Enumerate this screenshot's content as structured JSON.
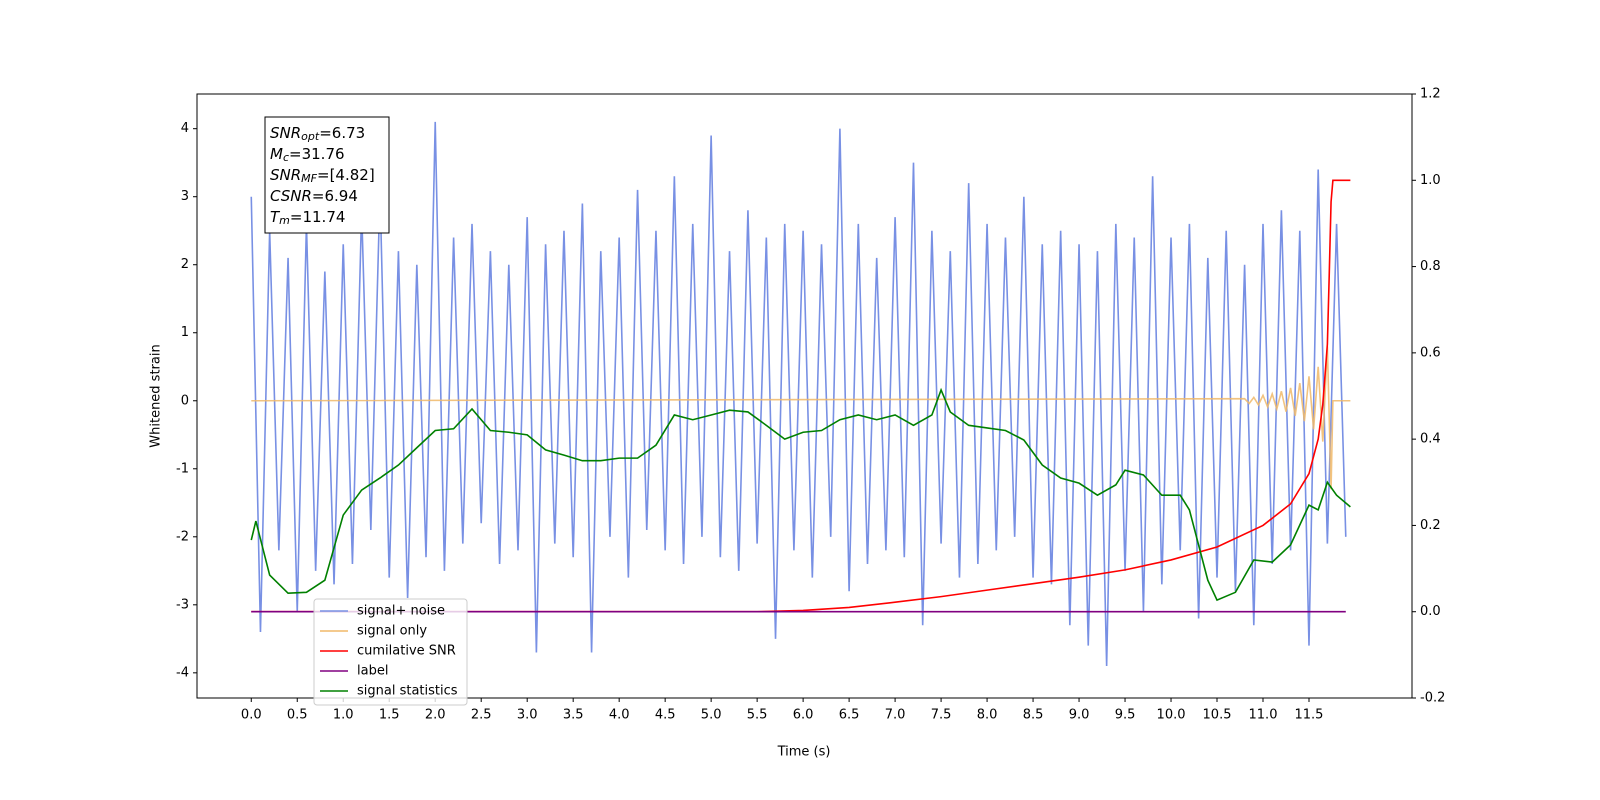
{
  "chart_data": {
    "type": "line",
    "xlabel": "Time (s)",
    "ylabel": "Whitened strain",
    "xlim": [
      -0.59,
      12.62
    ],
    "ylim": [
      -4.37,
      4.51
    ],
    "y2lim": [
      -0.2,
      1.2
    ],
    "xticks": [
      {
        "value": 0,
        "label": "0.0"
      },
      0.5,
      {
        "value": 1,
        "label": "1.0"
      },
      1.5,
      {
        "value": 2,
        "label": "2.0"
      },
      2.5,
      {
        "value": 3,
        "label": "3.0"
      },
      3.5,
      {
        "value": 4,
        "label": "4.0"
      },
      4.5,
      {
        "value": 5,
        "label": "5.0"
      },
      5.5,
      {
        "value": 6,
        "label": "6.0"
      },
      6.5,
      {
        "value": 7,
        "label": "7.0"
      },
      7.5,
      {
        "value": 8,
        "label": "8.0"
      },
      8.5,
      {
        "value": 9,
        "label": "9.0"
      },
      9.5,
      {
        "value": 10,
        "label": "10.0"
      },
      10.5,
      {
        "value": 11,
        "label": "11.0"
      },
      11.5
    ],
    "yticks": [
      -4,
      -3,
      -2,
      -1,
      0,
      1,
      2,
      3,
      4
    ],
    "y2ticks": [
      -0.2,
      {
        "value": 0,
        "label": "0.0"
      },
      0.2,
      0.4,
      0.6,
      0.8,
      {
        "value": 1,
        "label": "1.0"
      },
      1.2
    ],
    "grid": false,
    "legend": "lower left",
    "annotations": [
      {
        "base": "SNR",
        "sub": "opt",
        "text": "=6.73"
      },
      {
        "base": "M",
        "sub": "c",
        "text": "=31.76"
      },
      {
        "base": "SNR",
        "sub": "MF",
        "text": "=[4.82]"
      },
      {
        "base": "CSNR",
        "sub": null,
        "text": "=6.94"
      },
      {
        "base": "T",
        "sub": "m",
        "text": "=11.74"
      }
    ],
    "series": [
      {
        "name": "signal+ noise",
        "color": "#7890e4",
        "x": [
          0,
          0.1,
          0.2,
          0.3,
          0.4,
          0.5,
          0.6,
          0.7,
          0.8,
          0.9,
          1,
          1.1,
          1.2,
          1.3,
          1.4,
          1.5,
          1.6,
          1.7,
          1.8,
          1.9,
          2,
          2.1,
          2.2,
          2.3,
          2.4,
          2.5,
          2.6,
          2.7,
          2.8,
          2.9,
          3,
          3.1,
          3.2,
          3.3,
          3.4,
          3.5,
          3.6,
          3.7,
          3.8,
          3.9,
          4,
          4.1,
          4.2,
          4.3,
          4.4,
          4.5,
          4.6,
          4.7,
          4.8,
          4.9,
          5,
          5.1,
          5.2,
          5.3,
          5.4,
          5.5,
          5.6,
          5.7,
          5.8,
          5.9,
          6,
          6.1,
          6.2,
          6.3,
          6.4,
          6.5,
          6.6,
          6.7,
          6.8,
          6.9,
          7,
          7.1,
          7.2,
          7.3,
          7.4,
          7.5,
          7.6,
          7.7,
          7.8,
          7.9,
          8,
          8.1,
          8.2,
          8.3,
          8.4,
          8.5,
          8.6,
          8.7,
          8.8,
          8.9,
          9,
          9.1,
          9.2,
          9.3,
          9.4,
          9.5,
          9.6,
          9.7,
          9.8,
          9.9,
          10,
          10.1,
          10.2,
          10.3,
          10.4,
          10.5,
          10.6,
          10.7,
          10.8,
          10.9,
          11,
          11.1,
          11.2,
          11.3,
          11.4,
          11.5,
          11.6,
          11.7,
          11.8,
          11.9
        ],
        "values": [
          3.0,
          -3.4,
          2.5,
          -2.2,
          2.1,
          -3.1,
          2.6,
          -2.5,
          1.9,
          -2.7,
          2.3,
          -2.4,
          2.8,
          -1.9,
          3.1,
          -2.6,
          2.2,
          -2.9,
          2.0,
          -2.3,
          4.1,
          -2.5,
          2.4,
          -2.1,
          2.6,
          -1.8,
          2.2,
          -2.4,
          2.0,
          -2.2,
          2.7,
          -3.7,
          2.3,
          -2.1,
          2.5,
          -2.3,
          2.9,
          -3.7,
          2.2,
          -2.0,
          2.4,
          -2.6,
          3.1,
          -1.9,
          2.5,
          -2.2,
          3.3,
          -2.4,
          2.6,
          -2.0,
          3.9,
          -2.3,
          2.2,
          -2.5,
          2.8,
          -2.1,
          2.4,
          -3.5,
          2.6,
          -2.2,
          2.5,
          -2.6,
          2.3,
          -2.0,
          4.0,
          -2.8,
          2.6,
          -2.4,
          2.1,
          -2.2,
          2.7,
          -2.3,
          3.5,
          -3.3,
          2.5,
          -2.1,
          2.2,
          -2.6,
          3.2,
          -2.4,
          2.6,
          -2.2,
          2.4,
          -2.0,
          3.0,
          -2.6,
          2.3,
          -2.7,
          2.5,
          -3.3,
          2.3,
          -3.6,
          2.2,
          -3.9,
          2.6,
          -2.5,
          2.4,
          -3.1,
          3.3,
          -2.7,
          2.4,
          -2.2,
          2.6,
          -3.2,
          2.1,
          -2.6,
          2.5,
          -2.8,
          2.0,
          -3.3,
          2.6,
          -2.4,
          2.8,
          -2.2,
          2.5,
          -3.6,
          3.4,
          -2.1,
          2.6,
          -2.0
        ]
      },
      {
        "name": "signal only",
        "color": "#f0b868",
        "x": [
          0,
          10.8,
          10.85,
          10.9,
          10.95,
          11.0,
          11.05,
          11.1,
          11.15,
          11.2,
          11.25,
          11.3,
          11.35,
          11.4,
          11.45,
          11.5,
          11.55,
          11.6,
          11.65,
          11.7,
          11.74,
          11.76,
          11.95
        ],
        "values": [
          0,
          0.03,
          -0.04,
          0.05,
          -0.06,
          0.08,
          -0.09,
          0.1,
          -0.12,
          0.14,
          -0.16,
          0.19,
          -0.22,
          0.26,
          -0.3,
          0.36,
          -0.42,
          0.5,
          -0.6,
          0.8,
          -1.3,
          0,
          0
        ]
      },
      {
        "name": "cumilative SNR",
        "color": "#ff0000",
        "axis": "y2",
        "x": [
          0,
          5.5,
          6,
          6.5,
          7,
          7.5,
          8,
          8.5,
          9,
          9.5,
          10,
          10.5,
          11,
          11.3,
          11.5,
          11.6,
          11.65,
          11.7,
          11.72,
          11.74,
          11.76,
          11.95
        ],
        "values": [
          0,
          0,
          0.003,
          0.01,
          0.022,
          0.035,
          0.05,
          0.065,
          0.08,
          0.097,
          0.12,
          0.15,
          0.2,
          0.25,
          0.32,
          0.4,
          0.48,
          0.62,
          0.78,
          0.95,
          1.0,
          1.0
        ]
      },
      {
        "name": "label",
        "color": "#800080",
        "axis": "y2",
        "x": [
          0,
          11.9
        ],
        "values": [
          0,
          0
        ]
      },
      {
        "name": "signal statistics",
        "color": "#008000",
        "axis": "y2",
        "x": [
          0,
          0.05,
          0.2,
          0.4,
          0.6,
          0.8,
          1.0,
          1.2,
          1.4,
          1.6,
          1.8,
          2.0,
          2.2,
          2.4,
          2.6,
          2.8,
          3.0,
          3.2,
          3.4,
          3.6,
          3.8,
          4.0,
          4.2,
          4.4,
          4.6,
          4.8,
          5.0,
          5.2,
          5.4,
          5.6,
          5.8,
          6.0,
          6.2,
          6.4,
          6.6,
          6.8,
          7.0,
          7.2,
          7.4,
          7.5,
          7.6,
          7.8,
          8.0,
          8.2,
          8.4,
          8.6,
          8.8,
          9.0,
          9.2,
          9.4,
          9.5,
          9.7,
          9.9,
          10.1,
          10.2,
          10.4,
          10.5,
          10.7,
          10.9,
          11.1,
          11.3,
          11.5,
          11.6,
          11.7,
          11.8,
          11.95
        ],
        "values": [
          0.166,
          0.21,
          0.085,
          0.043,
          0.045,
          0.073,
          0.224,
          0.282,
          0.31,
          0.34,
          0.38,
          0.42,
          0.424,
          0.47,
          0.42,
          0.416,
          0.41,
          0.375,
          0.363,
          0.35,
          0.35,
          0.356,
          0.356,
          0.386,
          0.456,
          0.445,
          0.456,
          0.467,
          0.463,
          0.432,
          0.4,
          0.416,
          0.42,
          0.445,
          0.456,
          0.445,
          0.456,
          0.432,
          0.456,
          0.514,
          0.463,
          0.432,
          0.426,
          0.42,
          0.398,
          0.34,
          0.31,
          0.298,
          0.27,
          0.294,
          0.328,
          0.317,
          0.27,
          0.27,
          0.236,
          0.073,
          0.027,
          0.045,
          0.12,
          0.115,
          0.155,
          0.247,
          0.236,
          0.3,
          0.27,
          0.243
        ]
      }
    ]
  }
}
